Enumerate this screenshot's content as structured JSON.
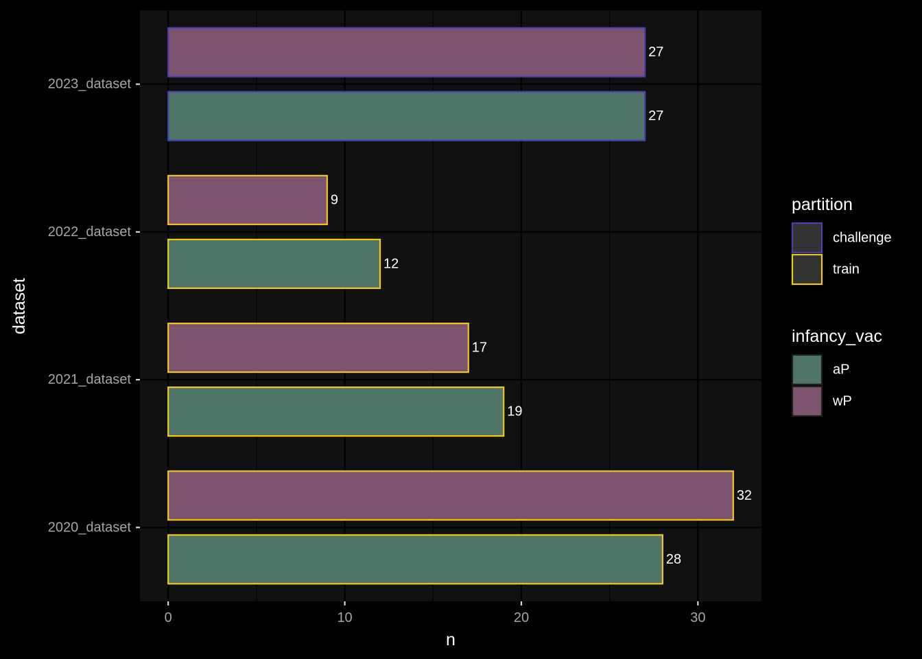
{
  "chart_data": {
    "type": "bar",
    "orientation": "horizontal",
    "xlabel": "n",
    "ylabel": "dataset",
    "xlim": [
      -1.6,
      33.6
    ],
    "x_ticks": [
      0,
      10,
      20,
      30
    ],
    "x_tick_labels": [
      "0",
      "10",
      "20",
      "30"
    ],
    "grid": true,
    "legend_position": "right",
    "categories": [
      "2020_dataset",
      "2021_dataset",
      "2022_dataset",
      "2023_dataset"
    ],
    "series": [
      {
        "name": "aP",
        "values": [
          28,
          19,
          12,
          27
        ]
      },
      {
        "name": "wP",
        "values": [
          32,
          17,
          9,
          27
        ]
      }
    ],
    "partition": [
      "train",
      "train",
      "train",
      "challenge"
    ],
    "legends": [
      {
        "title": "partition",
        "aesthetic": "outline",
        "items": [
          {
            "label": "challenge",
            "color": "#4b3fb2"
          },
          {
            "label": "train",
            "color": "#f2c718"
          }
        ]
      },
      {
        "title": "infancy_vac",
        "aesthetic": "fill",
        "items": [
          {
            "label": "aP",
            "color": "#4f7567"
          },
          {
            "label": "wP",
            "color": "#7d5370"
          }
        ]
      }
    ],
    "colors": {
      "background": "#000000",
      "panel": "#111111",
      "grid": "#000000"
    }
  }
}
